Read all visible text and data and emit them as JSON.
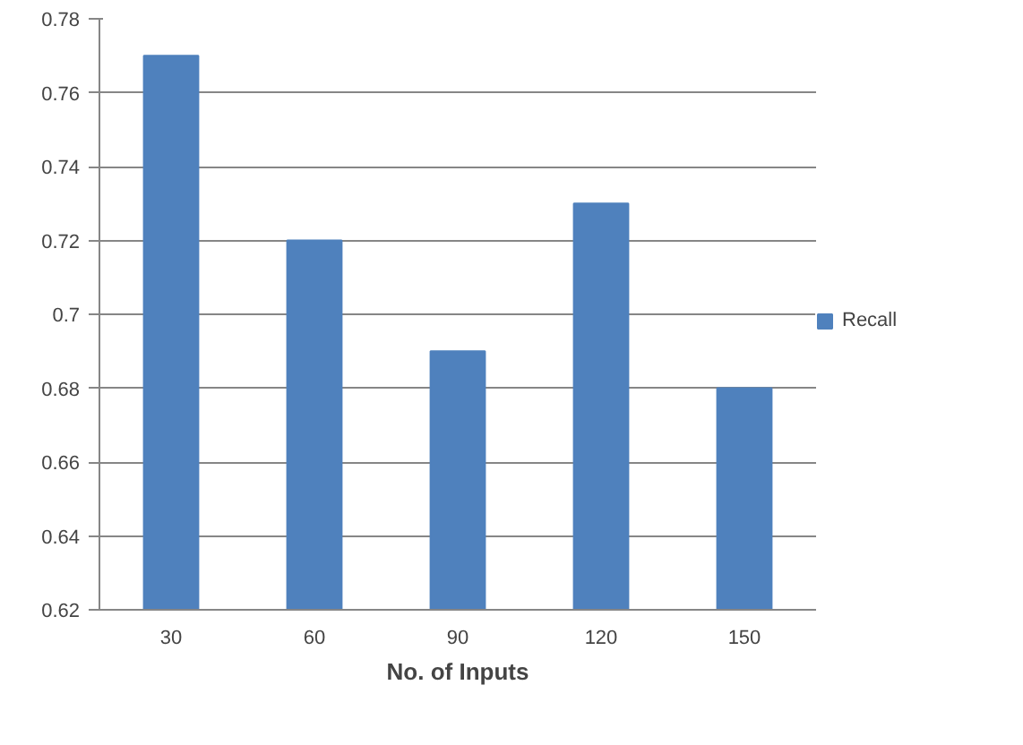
{
  "chart_data": {
    "type": "bar",
    "xlabel": "No. of Inputs",
    "categories": [
      "30",
      "60",
      "90",
      "120",
      "150"
    ],
    "series": [
      {
        "name": "Recall",
        "color": "#4f81bd",
        "values": [
          0.77,
          0.72,
          0.69,
          0.73,
          0.68
        ]
      }
    ],
    "ylim": [
      0.62,
      0.78
    ],
    "yticks": [
      0.62,
      0.64,
      0.66,
      0.68,
      0.7,
      0.72,
      0.74,
      0.76,
      0.78
    ],
    "grid": "y",
    "legend": "right"
  }
}
